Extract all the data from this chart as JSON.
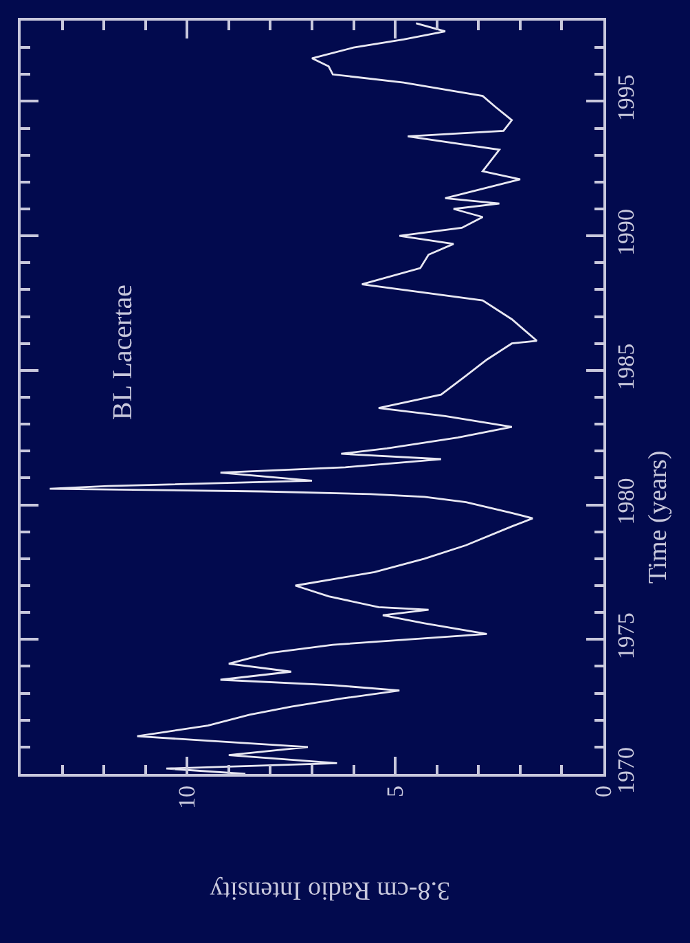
{
  "chart_data": {
    "type": "line",
    "annotations": [
      "BL Lacertae"
    ],
    "xlabel": "3.8-cm Radio Intensity",
    "ylabel": "Time (years)",
    "color": "#e8e8f2",
    "x": [
      8.6,
      10.5,
      6.4,
      9.0,
      7.1,
      11.2,
      9.5,
      8.5,
      7.5,
      6.3,
      4.9,
      6.5,
      9.2,
      7.5,
      9.0,
      8.0,
      6.5,
      2.8,
      4.3,
      5.3,
      4.2,
      5.4,
      6.6,
      7.4,
      5.5,
      4.3,
      3.3,
      2.2,
      1.7,
      2.2,
      3.3,
      4.3,
      5.6,
      8.2,
      13.3,
      11.9,
      7.0,
      9.2,
      6.2,
      3.9,
      6.3,
      5.2,
      3.5,
      2.2,
      3.8,
      5.4,
      3.9,
      3.3,
      2.8,
      2.2,
      1.6,
      2.2,
      2.9,
      5.8,
      4.4,
      4.2,
      3.6,
      4.9,
      3.4,
      2.9,
      3.6,
      2.5,
      3.8,
      2.0,
      2.9,
      2.5,
      4.7,
      2.4,
      2.2,
      2.6,
      2.9,
      4.8,
      6.5,
      6.6,
      7.0,
      6.0,
      4.8,
      3.8,
      4.5
    ],
    "values": [
      1970.0,
      1970.2,
      1970.4,
      1970.7,
      1971.0,
      1971.4,
      1971.8,
      1972.2,
      1972.5,
      1972.8,
      1973.1,
      1973.3,
      1973.5,
      1973.8,
      1974.1,
      1974.5,
      1974.8,
      1975.2,
      1975.6,
      1975.9,
      1976.1,
      1976.2,
      1976.6,
      1977.0,
      1977.5,
      1978.0,
      1978.5,
      1979.2,
      1979.5,
      1979.7,
      1980.1,
      1980.3,
      1980.4,
      1980.5,
      1980.6,
      1980.7,
      1980.9,
      1981.2,
      1981.4,
      1981.7,
      1981.9,
      1982.1,
      1982.5,
      1982.9,
      1983.3,
      1983.6,
      1984.1,
      1984.8,
      1985.4,
      1986.0,
      1986.1,
      1986.9,
      1987.6,
      1988.2,
      1988.8,
      1989.3,
      1989.7,
      1990.0,
      1990.3,
      1990.7,
      1991.0,
      1991.2,
      1991.4,
      1992.1,
      1992.4,
      1993.2,
      1993.7,
      1993.9,
      1994.3,
      1994.8,
      1995.2,
      1995.7,
      1996.0,
      1996.3,
      1996.6,
      1997.0,
      1997.3,
      1997.6,
      1997.9
    ],
    "ylim": [
      1970,
      1998
    ],
    "yticks": [
      1970,
      {
        "value": 1971,
        "label": null
      },
      {
        "value": 1972,
        "label": null
      },
      {
        "value": 1973,
        "label": null
      },
      {
        "value": 1974,
        "label": null
      },
      1975,
      {
        "value": 1976,
        "label": null
      },
      {
        "value": 1977,
        "label": null
      },
      {
        "value": 1978,
        "label": null
      },
      {
        "value": 1979,
        "label": null
      },
      1980,
      {
        "value": 1981,
        "label": null
      },
      {
        "value": 1982,
        "label": null
      },
      {
        "value": 1983,
        "label": null
      },
      {
        "value": 1984,
        "label": null
      },
      1985,
      {
        "value": 1986,
        "label": null
      },
      {
        "value": 1987,
        "label": null
      },
      {
        "value": 1988,
        "label": null
      },
      {
        "value": 1989,
        "label": null
      },
      1990,
      {
        "value": 1991,
        "label": null
      },
      {
        "value": 1992,
        "label": null
      },
      {
        "value": 1993,
        "label": null
      },
      {
        "value": 1994,
        "label": null
      },
      1995,
      {
        "value": 1996,
        "label": null
      },
      {
        "value": 1997,
        "label": null
      }
    ],
    "xlim": [
      14,
      0
    ],
    "xticks": [
      {
        "value": 13,
        "label": null
      },
      {
        "value": 12,
        "label": null
      },
      {
        "value": 11,
        "label": null
      },
      10,
      {
        "value": 9,
        "label": null
      },
      {
        "value": 8,
        "label": null
      },
      {
        "value": 7,
        "label": null
      },
      {
        "value": 6,
        "label": null
      },
      5,
      {
        "value": 4,
        "label": null
      },
      {
        "value": 3,
        "label": null
      },
      {
        "value": 2,
        "label": null
      },
      {
        "value": 1,
        "label": null
      },
      0
    ]
  }
}
